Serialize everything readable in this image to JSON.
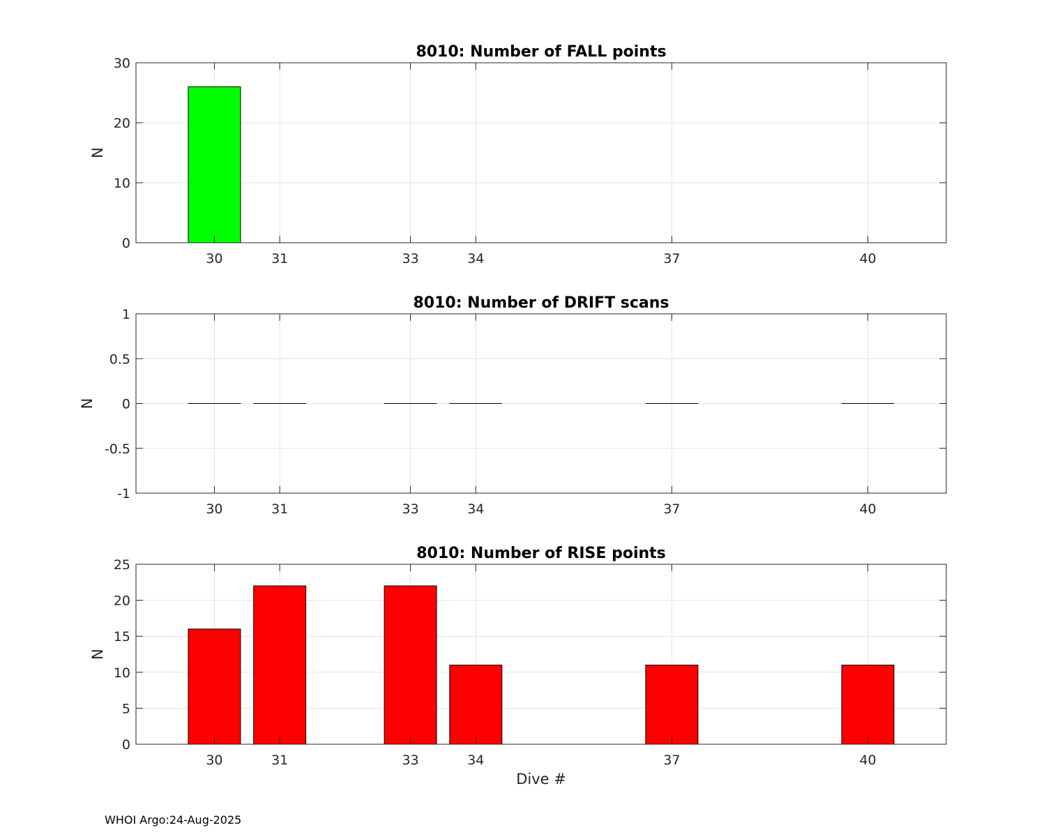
{
  "footer": "WHOI Argo:24-Aug-2025",
  "chart_data": [
    {
      "type": "bar",
      "title": "8010: Number of FALL points",
      "xlabel": "",
      "ylabel": "N",
      "x": [
        30,
        31,
        33,
        34,
        37,
        40
      ],
      "xticks": [
        30,
        31,
        33,
        34,
        37,
        40
      ],
      "xlim": [
        28.8,
        41.2
      ],
      "ylim": [
        0,
        30
      ],
      "yticks": [
        0,
        10,
        20,
        30
      ],
      "values": [
        26,
        0,
        0,
        0,
        0,
        0
      ],
      "bar_color": "#00ff00",
      "grid": true
    },
    {
      "type": "bar",
      "title": "8010: Number of DRIFT scans",
      "xlabel": "",
      "ylabel": "N",
      "x": [
        30,
        31,
        33,
        34,
        37,
        40
      ],
      "xticks": [
        30,
        31,
        33,
        34,
        37,
        40
      ],
      "xlim": [
        28.8,
        41.2
      ],
      "ylim": [
        -1,
        1
      ],
      "yticks": [
        -1,
        -0.5,
        0,
        0.5,
        1
      ],
      "values": [
        0,
        0,
        0,
        0,
        0,
        0
      ],
      "bar_color": "#0000ff",
      "grid": true
    },
    {
      "type": "bar",
      "title": "8010: Number of RISE points",
      "xlabel": "Dive #",
      "ylabel": "N",
      "x": [
        30,
        31,
        33,
        34,
        37,
        40
      ],
      "xticks": [
        30,
        31,
        33,
        34,
        37,
        40
      ],
      "xlim": [
        28.8,
        41.2
      ],
      "ylim": [
        0,
        25
      ],
      "yticks": [
        0,
        5,
        10,
        15,
        20,
        25
      ],
      "values": [
        16,
        22,
        22,
        11,
        11,
        11
      ],
      "bar_color": "#ff0000",
      "grid": true
    }
  ]
}
